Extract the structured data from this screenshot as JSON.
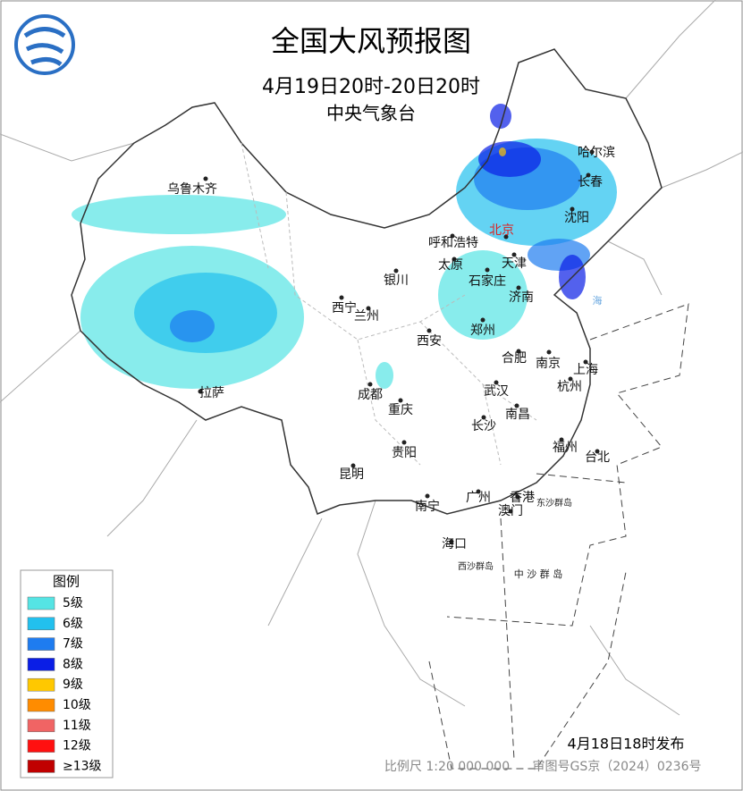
{
  "header": {
    "title": "全国大风预报图",
    "subtitle": "4月19日20时-20日20时",
    "issuer": "中央气象台"
  },
  "legend": {
    "title": "图例",
    "items": [
      {
        "label": "5级",
        "color": "#55e4e4"
      },
      {
        "label": "6级",
        "color": "#22c0ee"
      },
      {
        "label": "7级",
        "color": "#1e7cf0"
      },
      {
        "label": "8级",
        "color": "#0a1ee6"
      },
      {
        "label": "9级",
        "color": "#ffc800"
      },
      {
        "label": "10级",
        "color": "#ff8c00"
      },
      {
        "label": "11级",
        "color": "#f06464"
      },
      {
        "label": "12级",
        "color": "#ff1010"
      },
      {
        "label": "≥13级",
        "color": "#c00000"
      }
    ]
  },
  "cities": [
    "乌鲁木齐",
    "哈尔滨",
    "长春",
    "沈阳",
    "北京",
    "天津",
    "呼和浩特",
    "太原",
    "石家庄",
    "济南",
    "银川",
    "西宁",
    "兰州",
    "西安",
    "郑州",
    "合肥",
    "南京",
    "上海",
    "杭州",
    "拉萨",
    "成都",
    "重庆",
    "武汉",
    "长沙",
    "南昌",
    "贵阳",
    "福州",
    "台北",
    "昆明",
    "南宁",
    "广州",
    "香港",
    "澳门",
    "海口"
  ],
  "islands": [
    "东沙群岛",
    "西沙群岛",
    "中 沙 群 岛",
    "海"
  ],
  "footer": {
    "release": "4月18日18时发布",
    "scale": "比例尺 1:20 000 000",
    "approval": "审图号GS京（2024）0236号"
  }
}
